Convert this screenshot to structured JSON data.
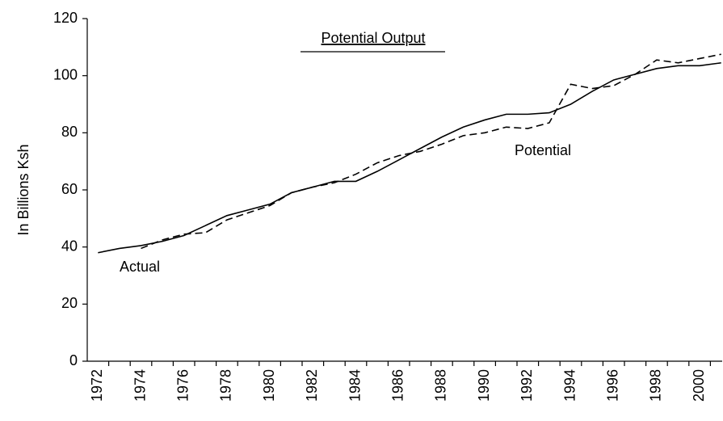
{
  "chart_data": {
    "type": "line",
    "title": "Potential Output",
    "y_label": "In Billions Ksh",
    "categories": [
      "1972",
      null,
      "1974",
      null,
      "1976",
      null,
      "1978",
      null,
      "1980",
      null,
      "1982",
      null,
      "1984",
      null,
      "1986",
      null,
      "1988",
      null,
      "1990",
      null,
      "1992",
      null,
      "1994",
      null,
      "1996",
      null,
      "1998",
      null,
      "2000",
      null
    ],
    "series": [
      {
        "name": "Actual",
        "color": "#000000",
        "dash": "none",
        "values": [
          38,
          39.5,
          40.5,
          42,
          44,
          47.5,
          51,
          53,
          55,
          59,
          61,
          63,
          63,
          66.5,
          70.5,
          74.5,
          78.5,
          82,
          84.5,
          86.5,
          86.5,
          87,
          90,
          94.5,
          98.5,
          100.5,
          102.5,
          103.5,
          103.5,
          104.5
        ]
      },
      {
        "name": "Potential",
        "color": "#000000",
        "dash": "9,5",
        "values": [
          null,
          null,
          39.5,
          42.5,
          44.5,
          45,
          49.5,
          52,
          54.5,
          59,
          61,
          62.5,
          65.5,
          69.5,
          72,
          73.5,
          76,
          79,
          80,
          82,
          81.5,
          83.5,
          97,
          95.5,
          96.5,
          100.5,
          105.5,
          104.5,
          106,
          107.5
        ]
      }
    ],
    "ylim": [
      0,
      120
    ],
    "yticks": [
      0,
      20,
      40,
      60,
      80,
      100,
      120
    ],
    "grid": false
  }
}
